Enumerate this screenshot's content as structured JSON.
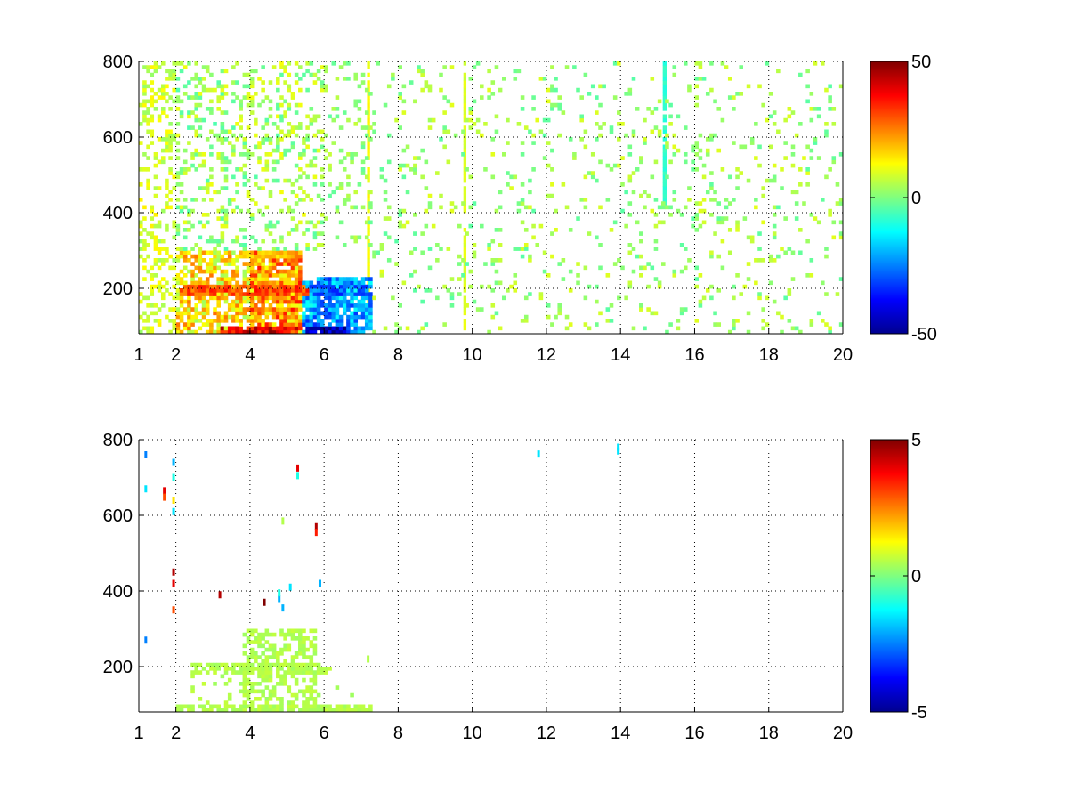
{
  "chart_data": [
    {
      "type": "heatmap",
      "colormap": "jet",
      "xlim": [
        1,
        20
      ],
      "ylim": [
        80,
        800
      ],
      "x_ticks": [
        "1",
        "2",
        "4",
        "6",
        "8",
        "10",
        "12",
        "14",
        "16",
        "18",
        "20"
      ],
      "x_tick_values": [
        1,
        2,
        4,
        6,
        8,
        10,
        12,
        14,
        16,
        18,
        20
      ],
      "y_ticks": [
        "200",
        "400",
        "600",
        "800"
      ],
      "y_tick_values": [
        200,
        400,
        600,
        800
      ],
      "clim": [
        -50,
        50
      ],
      "colorbar_ticks": [
        "50",
        "0",
        "-50"
      ],
      "colorbar_tick_values": [
        50,
        0,
        -50
      ],
      "grid": true,
      "regions": [
        {
          "x": [
            1.0,
            2.0
          ],
          "y": [
            80,
            800
          ],
          "density": 0.35,
          "value": 8,
          "spread": 6
        },
        {
          "x": [
            2.0,
            4.0
          ],
          "y": [
            300,
            800
          ],
          "density": 0.25,
          "value": 3,
          "spread": 8
        },
        {
          "x": [
            4.0,
            6.0
          ],
          "y": [
            300,
            800
          ],
          "density": 0.22,
          "value": 4,
          "spread": 8
        },
        {
          "x": [
            2.0,
            4.0
          ],
          "y": [
            80,
            300
          ],
          "density": 0.65,
          "value": 15,
          "spread": 12
        },
        {
          "x": [
            4.0,
            5.4
          ],
          "y": [
            80,
            300
          ],
          "density": 0.85,
          "value": 22,
          "spread": 14
        },
        {
          "x": [
            5.4,
            7.3
          ],
          "y": [
            80,
            230
          ],
          "density": 0.8,
          "value": -22,
          "spread": 12
        },
        {
          "x": [
            6.0,
            7.3
          ],
          "y": [
            300,
            800
          ],
          "density": 0.12,
          "value": 2,
          "spread": 5
        },
        {
          "x": [
            7.3,
            20.0
          ],
          "y": [
            80,
            800
          ],
          "density": 0.09,
          "value": 3,
          "spread": 7
        }
      ],
      "hot_bands": [
        {
          "x": [
            3.2,
            5.3
          ],
          "y": [
            80,
            100
          ],
          "value": 40
        },
        {
          "x": [
            2.1,
            5.6
          ],
          "y": [
            185,
            205
          ],
          "value": 30
        },
        {
          "x": [
            3.7,
            5.1
          ],
          "y": [
            280,
            300
          ],
          "value": 18
        },
        {
          "x": [
            5.5,
            6.8
          ],
          "y": [
            80,
            100
          ],
          "value": -45
        },
        {
          "x": [
            5.7,
            6.6
          ],
          "y": [
            185,
            205
          ],
          "value": -28
        }
      ],
      "column_stripes": [
        {
          "x": 7.2,
          "width": 0.08,
          "y": [
            80,
            800
          ],
          "value": 12
        },
        {
          "x": 15.2,
          "width": 0.12,
          "y": [
            420,
            800
          ],
          "value": -8
        },
        {
          "x": 9.8,
          "width": 0.08,
          "y": [
            80,
            800
          ],
          "value": 9
        }
      ]
    },
    {
      "type": "heatmap",
      "colormap": "jet",
      "xlim": [
        1,
        20
      ],
      "ylim": [
        80,
        800
      ],
      "x_ticks": [
        "1",
        "2",
        "4",
        "6",
        "8",
        "10",
        "12",
        "14",
        "16",
        "18",
        "20"
      ],
      "x_tick_values": [
        1,
        2,
        4,
        6,
        8,
        10,
        12,
        14,
        16,
        18,
        20
      ],
      "y_ticks": [
        "200",
        "400",
        "600",
        "800"
      ],
      "y_tick_values": [
        200,
        400,
        600,
        800
      ],
      "clim": [
        -5,
        5
      ],
      "colorbar_ticks": [
        "5",
        "0",
        "-5"
      ],
      "colorbar_tick_values": [
        5,
        0,
        -5
      ],
      "grid": true,
      "regions": [
        {
          "x": [
            2.0,
            7.3
          ],
          "y": [
            80,
            100
          ],
          "density": 0.85,
          "value": 0.5,
          "spread": 0.2
        },
        {
          "x": [
            2.4,
            6.2
          ],
          "y": [
            180,
            205
          ],
          "density": 0.7,
          "value": 0.5,
          "spread": 0.2
        },
        {
          "x": [
            3.8,
            5.8
          ],
          "y": [
            100,
            300
          ],
          "density": 0.5,
          "value": 0.5,
          "spread": 0.2
        },
        {
          "x": [
            2.4,
            3.8
          ],
          "y": [
            100,
            180
          ],
          "density": 0.12,
          "value": 0.5,
          "spread": 0.2
        },
        {
          "x": [
            5.8,
            7.2
          ],
          "y": [
            100,
            180
          ],
          "density": 0.08,
          "value": 0.5,
          "spread": 0.2
        }
      ],
      "points": [
        {
          "x": 1.2,
          "y": 760,
          "value": -2.5
        },
        {
          "x": 1.2,
          "y": 670,
          "value": -1.5
        },
        {
          "x": 1.2,
          "y": 270,
          "value": -2.5
        },
        {
          "x": 1.7,
          "y": 665,
          "value": 4.0
        },
        {
          "x": 1.7,
          "y": 648,
          "value": 3.0
        },
        {
          "x": 1.95,
          "y": 740,
          "value": -2.0
        },
        {
          "x": 1.95,
          "y": 700,
          "value": -1.0
        },
        {
          "x": 1.95,
          "y": 640,
          "value": 1.5
        },
        {
          "x": 1.95,
          "y": 610,
          "value": -1.5
        },
        {
          "x": 1.95,
          "y": 450,
          "value": 4.5
        },
        {
          "x": 1.95,
          "y": 420,
          "value": 4.0
        },
        {
          "x": 1.95,
          "y": 350,
          "value": 3.0
        },
        {
          "x": 3.2,
          "y": 390,
          "value": 4.5
        },
        {
          "x": 4.4,
          "y": 370,
          "value": 5.0
        },
        {
          "x": 4.8,
          "y": 380,
          "value": -2.0
        },
        {
          "x": 4.8,
          "y": 395,
          "value": -1.0
        },
        {
          "x": 4.9,
          "y": 355,
          "value": -2.0
        },
        {
          "x": 5.1,
          "y": 410,
          "value": -1.5
        },
        {
          "x": 5.3,
          "y": 725,
          "value": 4.0
        },
        {
          "x": 5.3,
          "y": 705,
          "value": -1.0
        },
        {
          "x": 4.9,
          "y": 585,
          "value": 0.5
        },
        {
          "x": 5.8,
          "y": 570,
          "value": 4.5
        },
        {
          "x": 5.8,
          "y": 555,
          "value": 3.5
        },
        {
          "x": 5.9,
          "y": 420,
          "value": -2.0
        },
        {
          "x": 7.2,
          "y": 220,
          "value": 0.5
        },
        {
          "x": 11.8,
          "y": 762,
          "value": -1.5
        },
        {
          "x": 13.95,
          "y": 780,
          "value": -1.5
        },
        {
          "x": 13.95,
          "y": 770,
          "value": -1.5
        }
      ]
    }
  ]
}
